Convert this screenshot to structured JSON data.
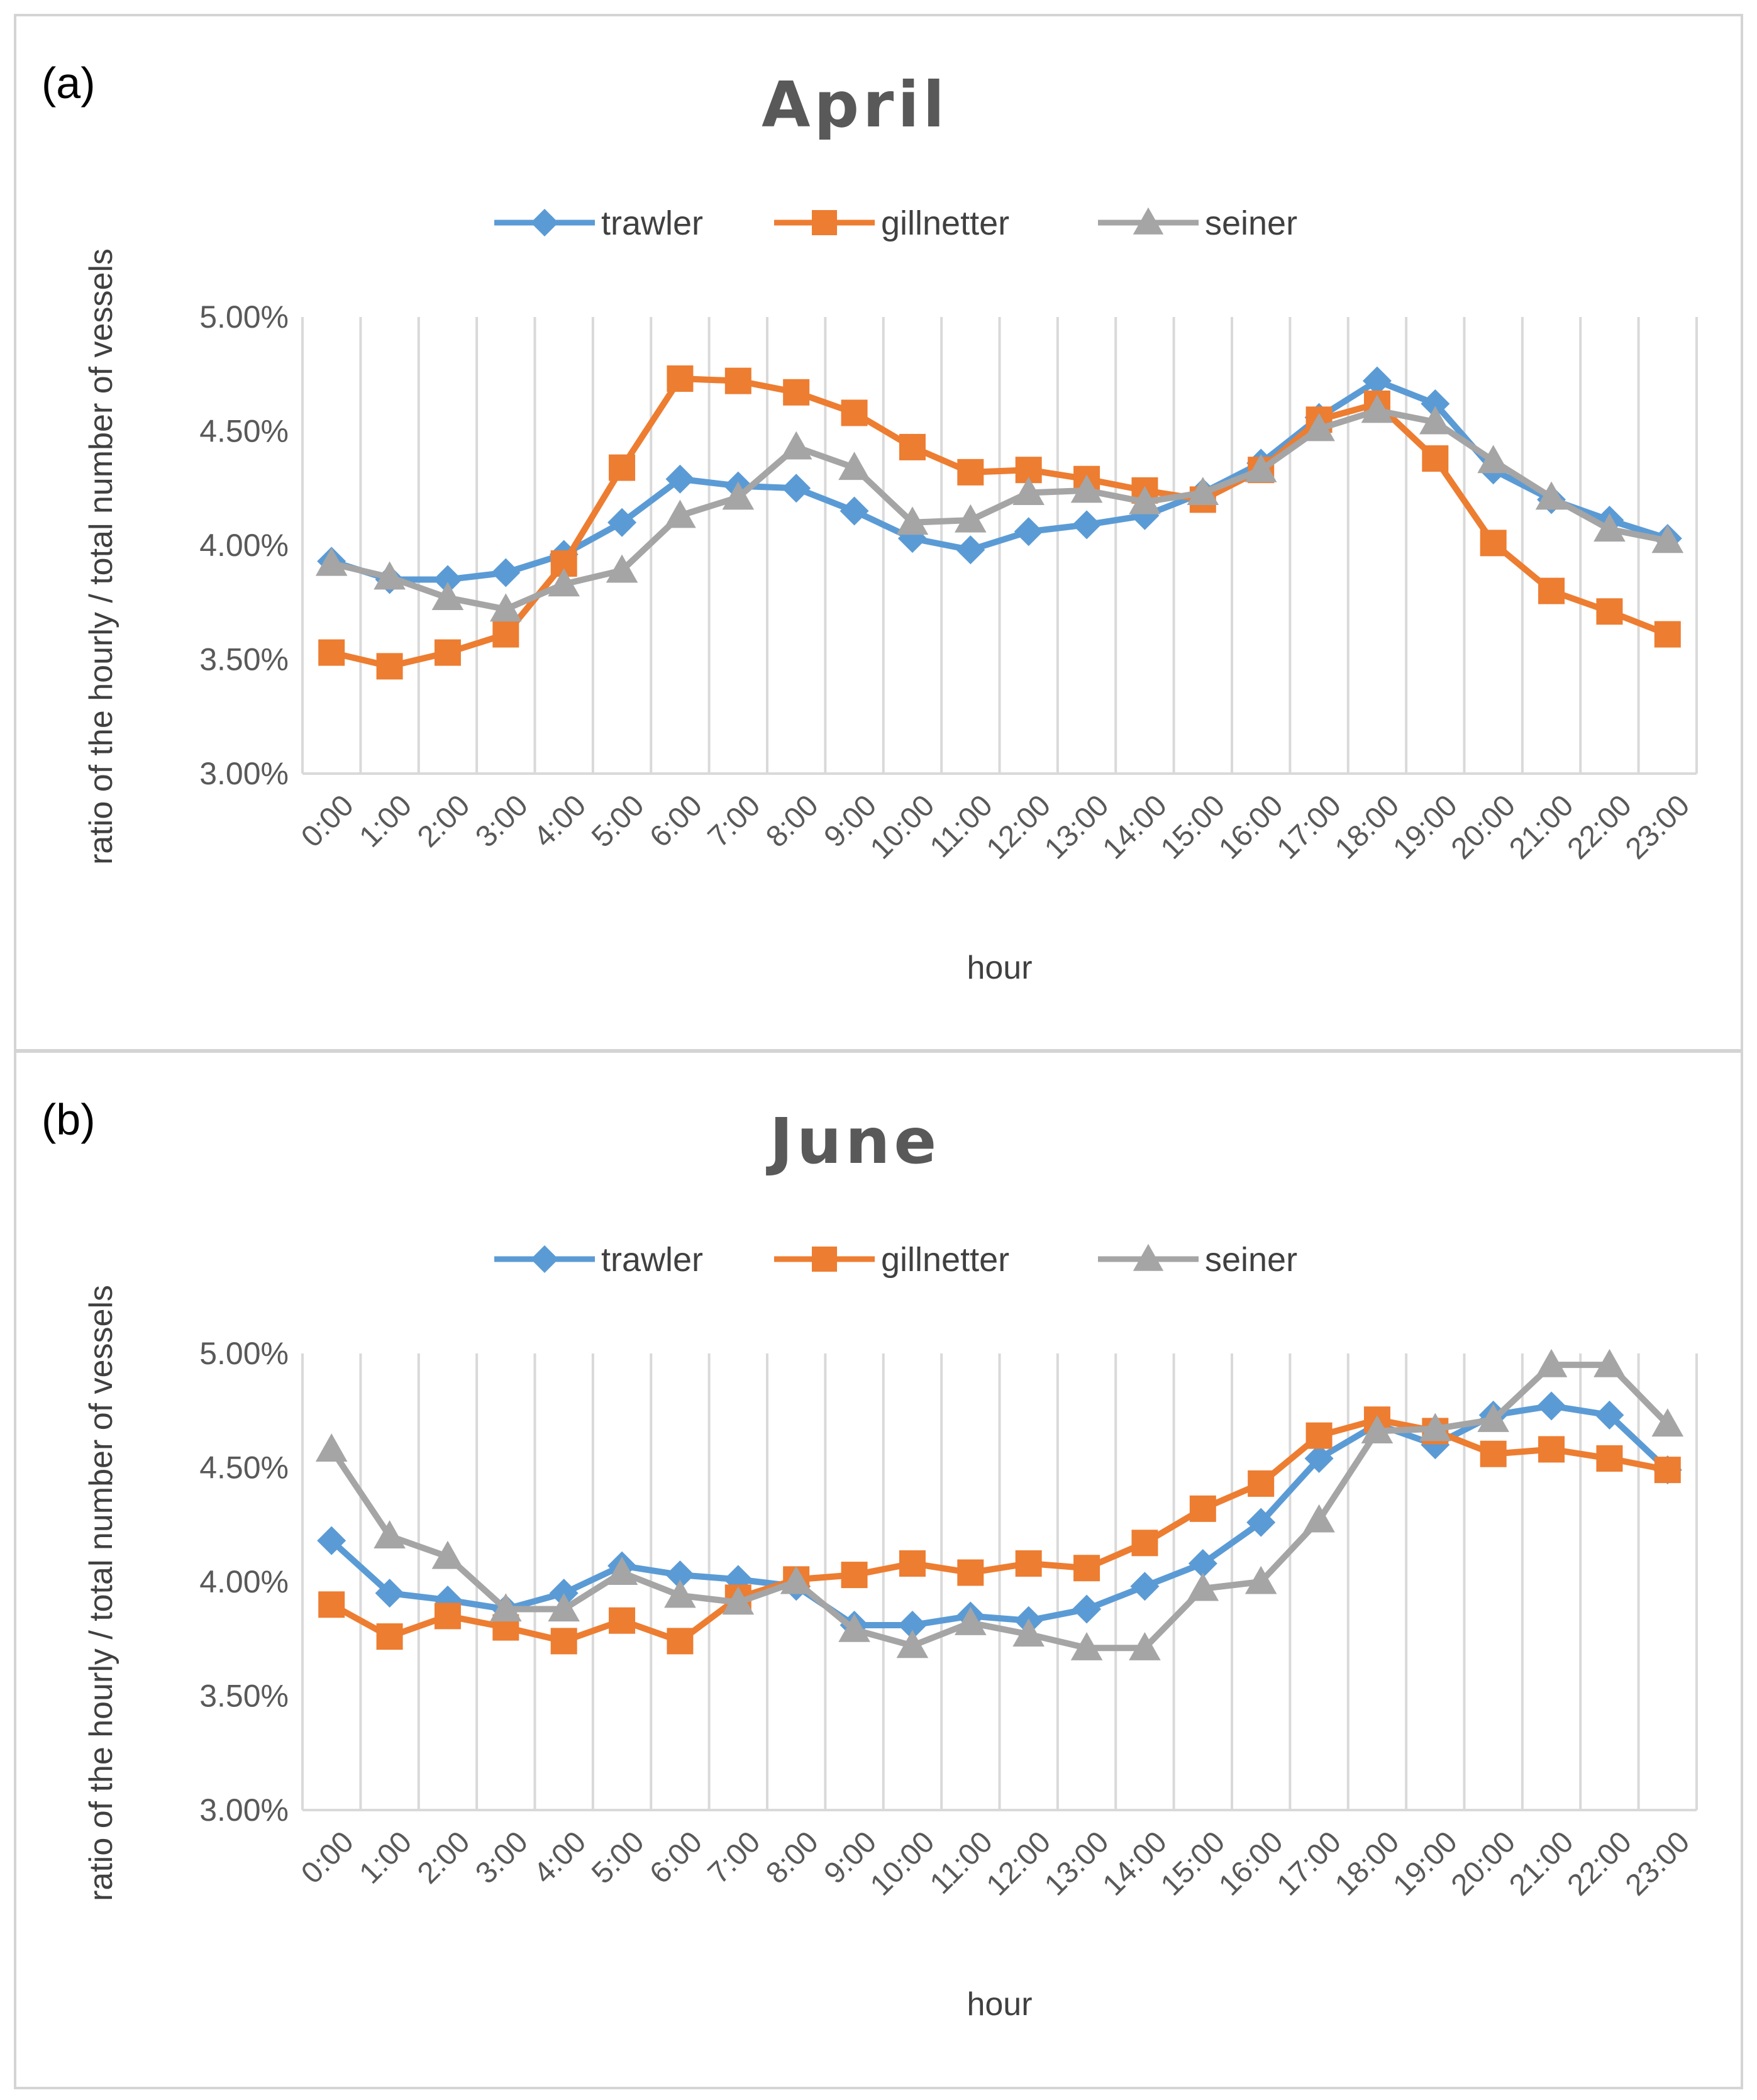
{
  "chart_data": [
    {
      "type": "line",
      "panel_label": "(a)",
      "title": "April",
      "xlabel": "hour",
      "ylabel": "ratio of the hourly / total number of vessels",
      "categories": [
        "0:00",
        "1:00",
        "2:00",
        "3:00",
        "4:00",
        "5:00",
        "6:00",
        "7:00",
        "8:00",
        "9:00",
        "10:00",
        "11:00",
        "12:00",
        "13:00",
        "14:00",
        "15:00",
        "16:00",
        "17:00",
        "18:00",
        "19:00",
        "20:00",
        "21:00",
        "22:00",
        "23:00"
      ],
      "ylim": [
        3.0,
        5.0
      ],
      "yticks": [
        "3.00%",
        "3.50%",
        "4.00%",
        "4.50%",
        "5.00%"
      ],
      "grid": "vertical",
      "legend": "top-center",
      "series": [
        {
          "name": "trawler",
          "color": "#5b9bd5",
          "marker": "diamond",
          "values": [
            3.93,
            3.85,
            3.85,
            3.88,
            3.96,
            4.1,
            4.29,
            4.26,
            4.25,
            4.15,
            4.03,
            3.98,
            4.06,
            4.09,
            4.13,
            4.23,
            4.36,
            4.56,
            4.72,
            4.62,
            4.33,
            4.2,
            4.11,
            4.03
          ]
        },
        {
          "name": "gillnetter",
          "color": "#ed7d31",
          "marker": "square",
          "values": [
            3.53,
            3.47,
            3.53,
            3.61,
            3.92,
            4.34,
            4.73,
            4.72,
            4.67,
            4.58,
            4.43,
            4.32,
            4.33,
            4.29,
            4.24,
            4.2,
            4.33,
            4.55,
            4.62,
            4.38,
            4.01,
            3.8,
            3.71,
            3.61
          ]
        },
        {
          "name": "seiner",
          "color": "#a5a5a5",
          "marker": "triangle",
          "values": [
            3.92,
            3.86,
            3.77,
            3.72,
            3.83,
            3.89,
            4.13,
            4.21,
            4.43,
            4.34,
            4.1,
            4.11,
            4.23,
            4.24,
            4.19,
            4.23,
            4.33,
            4.51,
            4.59,
            4.54,
            4.37,
            4.21,
            4.07,
            4.02
          ]
        }
      ]
    },
    {
      "type": "line",
      "panel_label": "(b)",
      "title": "June",
      "xlabel": "hour",
      "ylabel": "ratio of the hourly / total number of vessels",
      "categories": [
        "0:00",
        "1:00",
        "2:00",
        "3:00",
        "4:00",
        "5:00",
        "6:00",
        "7:00",
        "8:00",
        "9:00",
        "10:00",
        "11:00",
        "12:00",
        "13:00",
        "14:00",
        "15:00",
        "16:00",
        "17:00",
        "18:00",
        "19:00",
        "20:00",
        "21:00",
        "22:00",
        "23:00"
      ],
      "ylim": [
        3.0,
        5.0
      ],
      "yticks": [
        "3.00%",
        "3.50%",
        "4.00%",
        "4.50%",
        "5.00%"
      ],
      "grid": "vertical",
      "legend": "top-center",
      "series": [
        {
          "name": "trawler",
          "color": "#5b9bd5",
          "marker": "diamond",
          "values": [
            4.18,
            3.95,
            3.92,
            3.88,
            3.95,
            4.07,
            4.03,
            4.01,
            3.98,
            3.81,
            3.81,
            3.85,
            3.83,
            3.88,
            3.98,
            4.08,
            4.26,
            4.54,
            4.69,
            4.6,
            4.73,
            4.77,
            4.73,
            4.49
          ]
        },
        {
          "name": "gillnetter",
          "color": "#ed7d31",
          "marker": "square",
          "values": [
            3.9,
            3.76,
            3.85,
            3.8,
            3.74,
            3.83,
            3.74,
            3.93,
            4.01,
            4.03,
            4.08,
            4.04,
            4.08,
            4.06,
            4.17,
            4.32,
            4.43,
            4.64,
            4.71,
            4.66,
            4.56,
            4.58,
            4.54,
            4.49
          ]
        },
        {
          "name": "seiner",
          "color": "#a5a5a5",
          "marker": "triangle",
          "values": [
            4.58,
            4.2,
            4.11,
            3.88,
            3.88,
            4.04,
            3.94,
            3.91,
            4.0,
            3.79,
            3.72,
            3.82,
            3.77,
            3.71,
            3.71,
            3.97,
            4.0,
            4.27,
            4.66,
            4.67,
            4.71,
            4.95,
            4.95,
            4.69
          ]
        }
      ]
    }
  ]
}
